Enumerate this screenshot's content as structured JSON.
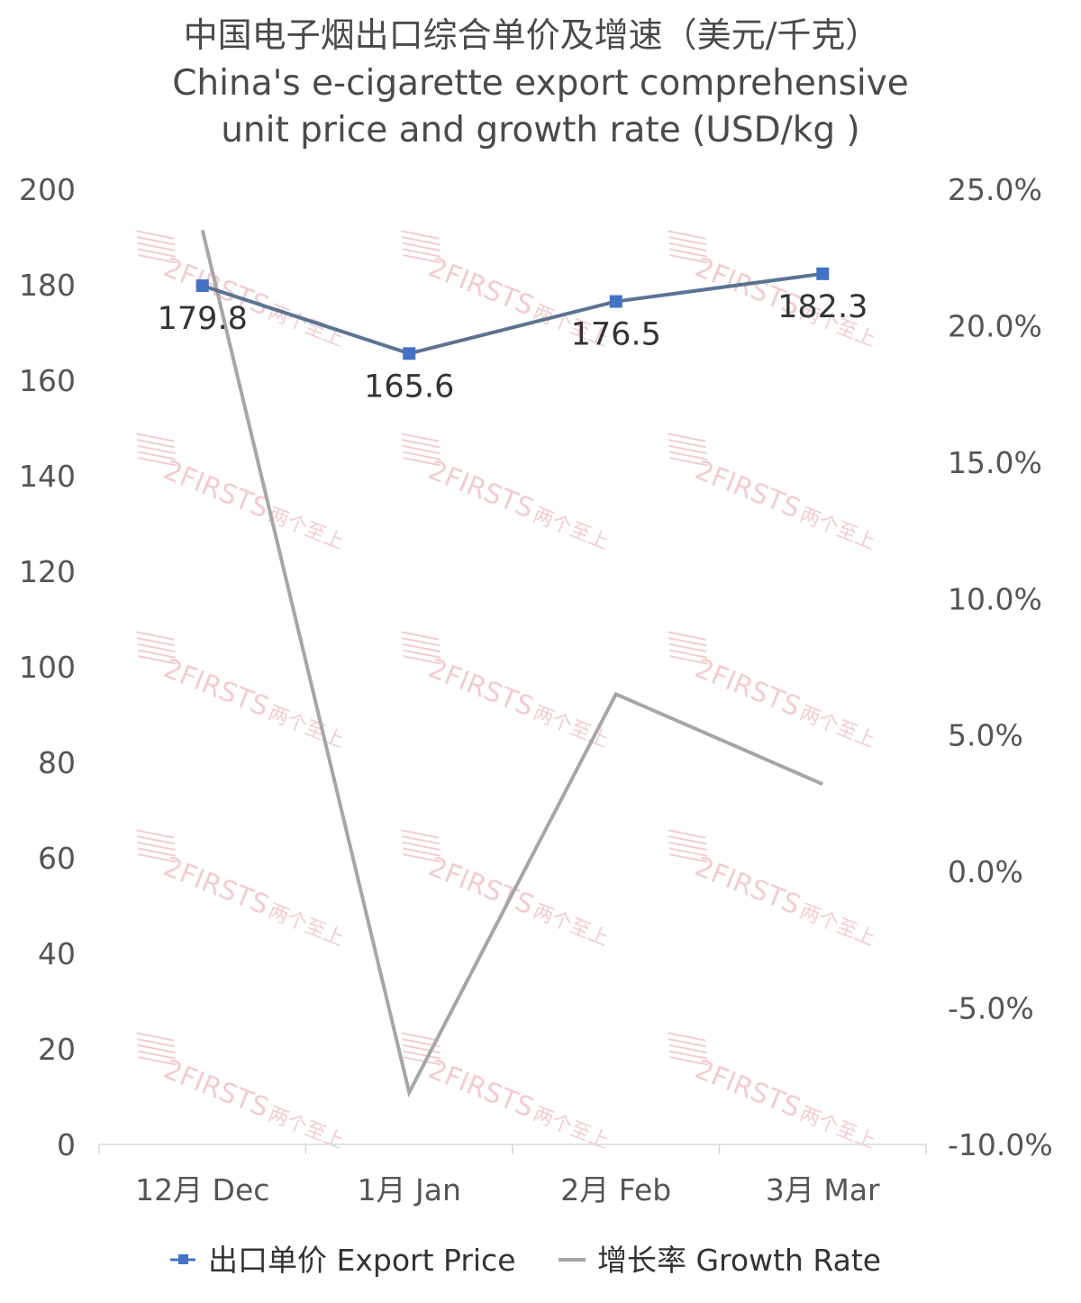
{
  "chart_data": {
    "type": "line",
    "title_lines": [
      "中国电子烟出口综合单价及增速（美元/千克）",
      "China's e-cigarette export comprehensive",
      "unit price and growth rate (USD/kg )"
    ],
    "categories": [
      "12月 Dec",
      "1月 Jan",
      "2月 Feb",
      "3月 Mar"
    ],
    "series": [
      {
        "name": "出口单价 Export Price",
        "axis": "left",
        "values": [
          179.8,
          165.6,
          176.5,
          182.3
        ],
        "data_labels": [
          "179.8",
          "165.6",
          "176.5",
          "182.3"
        ],
        "color": "#5b7393",
        "marker_color": "#4472c4",
        "marker": "square"
      },
      {
        "name": "增长率 Growth Rate",
        "axis": "right",
        "values": [
          23.5,
          -8.1,
          6.5,
          3.2
        ],
        "unit": "%",
        "color": "#a6a6a6",
        "marker": "none"
      }
    ],
    "y_left": {
      "ylim": [
        0,
        200
      ],
      "ticks": [
        "0",
        "20",
        "40",
        "60",
        "80",
        "100",
        "120",
        "140",
        "160",
        "180",
        "200"
      ]
    },
    "y_right": {
      "ylim": [
        -10,
        25
      ],
      "ticks": [
        "-10.0%",
        "-5.0%",
        "0.0%",
        "5.0%",
        "10.0%",
        "15.0%",
        "20.0%",
        "25.0%"
      ]
    },
    "grid": false,
    "legend_position": "bottom",
    "watermark": {
      "brand": "2FIRSTS",
      "cn": "两个至上"
    },
    "colors": {
      "axis": "#d9d9d9",
      "tick_text": "#555555",
      "title": "#4a4a4a",
      "watermark": "#f1c8cb"
    }
  }
}
